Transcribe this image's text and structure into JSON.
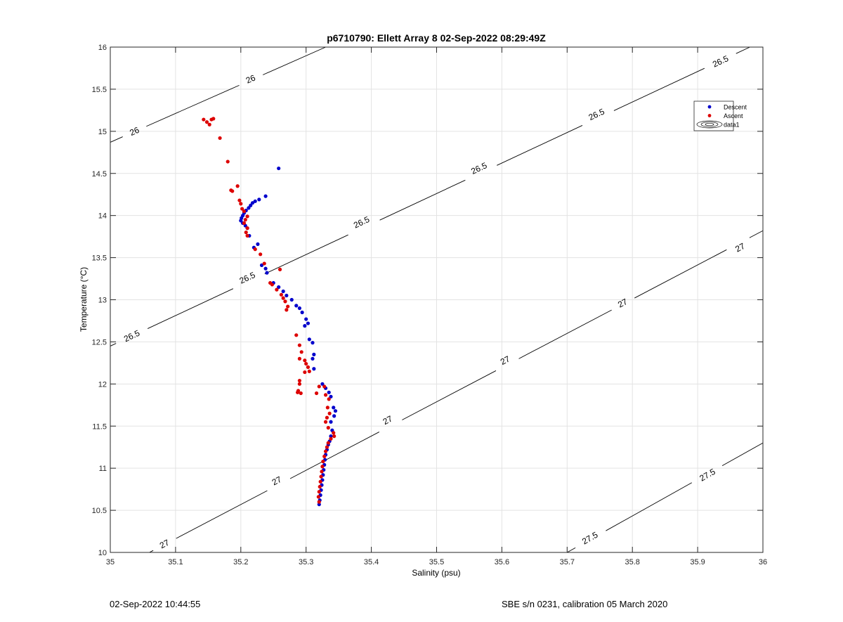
{
  "footer": {
    "timestamp": "02-Sep-2022 10:44:55",
    "instrument": "SBE s/n 0231, calibration 05 March 2020"
  },
  "chart_data": {
    "type": "scatter",
    "title": "p6710790: Ellett Array 8 02-Sep-2022 08:29:49Z",
    "xlabel": "Salinity (psu)",
    "ylabel": "Temperature (°C)",
    "xlim": [
      35,
      36
    ],
    "ylim": [
      10,
      16
    ],
    "xticks": [
      "35",
      "35.1",
      "35.2",
      "35.3",
      "35.4",
      "35.5",
      "35.6",
      "35.7",
      "35.8",
      "35.9",
      "36"
    ],
    "yticks": [
      "10",
      "10.5",
      "11",
      "11.5",
      "12",
      "12.5",
      "13",
      "13.5",
      "14",
      "14.5",
      "15",
      "15.5",
      "16"
    ],
    "grid": true,
    "legend": {
      "position": "top-right",
      "entries": [
        "Descent",
        "Ascent",
        "data1"
      ]
    },
    "colors": {
      "descent": "#0000cc",
      "ascent": "#dd0000",
      "contour": "#000000",
      "grid": "#e3e3e3"
    },
    "contours": [
      {
        "level": "26",
        "points": [
          [
            35.0,
            14.87
          ],
          [
            35.33,
            16.0
          ]
        ],
        "labels": [
          [
            35.037,
            15.0
          ],
          [
            35.215,
            15.62
          ]
        ]
      },
      {
        "level": "26.5",
        "points": [
          [
            35.0,
            12.45
          ],
          [
            35.98,
            16.0
          ]
        ],
        "labels": [
          [
            35.033,
            12.57
          ],
          [
            35.21,
            13.26
          ],
          [
            35.385,
            13.92
          ],
          [
            35.565,
            14.56
          ],
          [
            35.745,
            15.2
          ],
          [
            35.935,
            15.83
          ]
        ]
      },
      {
        "level": "27",
        "points": [
          [
            35.06,
            10.0
          ],
          [
            36.0,
            13.82
          ]
        ],
        "labels": [
          [
            35.083,
            10.1
          ],
          [
            35.255,
            10.85
          ],
          [
            35.425,
            11.57
          ],
          [
            35.605,
            12.28
          ],
          [
            35.785,
            12.96
          ],
          [
            35.965,
            13.62
          ]
        ]
      },
      {
        "level": "27.5",
        "points": [
          [
            35.7,
            10.0
          ],
          [
            36.0,
            11.3
          ]
        ],
        "labels": [
          [
            35.735,
            10.17
          ],
          [
            35.915,
            10.92
          ]
        ]
      }
    ],
    "series": [
      {
        "name": "Descent",
        "points": [
          [
            35.258,
            14.56
          ],
          [
            35.238,
            14.23
          ],
          [
            35.228,
            14.19
          ],
          [
            35.222,
            14.17
          ],
          [
            35.218,
            14.15
          ],
          [
            35.215,
            14.12
          ],
          [
            35.212,
            14.09
          ],
          [
            35.208,
            14.06
          ],
          [
            35.205,
            14.03
          ],
          [
            35.203,
            14.0
          ],
          [
            35.201,
            13.97
          ],
          [
            35.2,
            13.94
          ],
          [
            35.203,
            13.91
          ],
          [
            35.207,
            13.88
          ],
          [
            35.21,
            13.85
          ],
          [
            35.213,
            13.76
          ],
          [
            35.22,
            13.62
          ],
          [
            35.226,
            13.66
          ],
          [
            35.232,
            13.41
          ],
          [
            35.238,
            13.37
          ],
          [
            35.24,
            13.32
          ],
          [
            35.25,
            13.2
          ],
          [
            35.258,
            13.15
          ],
          [
            35.265,
            13.1
          ],
          [
            35.27,
            13.05
          ],
          [
            35.278,
            13.0
          ],
          [
            35.285,
            12.93
          ],
          [
            35.29,
            12.9
          ],
          [
            35.294,
            12.85
          ],
          [
            35.3,
            12.77
          ],
          [
            35.303,
            12.72
          ],
          [
            35.298,
            12.69
          ],
          [
            35.305,
            12.53
          ],
          [
            35.31,
            12.49
          ],
          [
            35.312,
            12.35
          ],
          [
            35.31,
            12.3
          ],
          [
            35.312,
            12.18
          ],
          [
            35.325,
            12.0
          ],
          [
            35.33,
            11.95
          ],
          [
            35.335,
            11.9
          ],
          [
            35.338,
            11.85
          ],
          [
            35.342,
            11.72
          ],
          [
            35.345,
            11.68
          ],
          [
            35.343,
            11.62
          ],
          [
            35.338,
            11.55
          ],
          [
            35.34,
            11.45
          ],
          [
            35.338,
            11.38
          ],
          [
            35.336,
            11.32
          ],
          [
            35.334,
            11.28
          ],
          [
            35.332,
            11.22
          ],
          [
            35.33,
            11.16
          ],
          [
            35.329,
            11.1
          ],
          [
            35.328,
            11.04
          ],
          [
            35.327,
            10.98
          ],
          [
            35.326,
            10.92
          ],
          [
            35.325,
            10.86
          ],
          [
            35.324,
            10.8
          ],
          [
            35.323,
            10.74
          ],
          [
            35.322,
            10.68
          ],
          [
            35.321,
            10.62
          ],
          [
            35.32,
            10.57
          ]
        ]
      },
      {
        "name": "Ascent",
        "points": [
          [
            35.143,
            15.14
          ],
          [
            35.148,
            15.11
          ],
          [
            35.152,
            15.08
          ],
          [
            35.155,
            15.14
          ],
          [
            35.158,
            15.15
          ],
          [
            35.168,
            14.92
          ],
          [
            35.18,
            14.64
          ],
          [
            35.195,
            14.35
          ],
          [
            35.187,
            14.29
          ],
          [
            35.185,
            14.3
          ],
          [
            35.198,
            14.18
          ],
          [
            35.2,
            14.14
          ],
          [
            35.205,
            14.05
          ],
          [
            35.202,
            14.08
          ],
          [
            35.21,
            13.99
          ],
          [
            35.207,
            13.95
          ],
          [
            35.205,
            13.91
          ],
          [
            35.21,
            13.85
          ],
          [
            35.208,
            13.8
          ],
          [
            35.21,
            13.76
          ],
          [
            35.222,
            13.6
          ],
          [
            35.23,
            13.54
          ],
          [
            35.236,
            13.43
          ],
          [
            35.245,
            13.2
          ],
          [
            35.248,
            13.18
          ],
          [
            35.255,
            13.12
          ],
          [
            35.26,
            13.36
          ],
          [
            35.262,
            13.06
          ],
          [
            35.265,
            13.02
          ],
          [
            35.268,
            12.98
          ],
          [
            35.27,
            12.88
          ],
          [
            35.272,
            12.92
          ],
          [
            35.285,
            12.58
          ],
          [
            35.29,
            12.46
          ],
          [
            35.293,
            12.38
          ],
          [
            35.29,
            12.3
          ],
          [
            35.298,
            12.28
          ],
          [
            35.3,
            12.24
          ],
          [
            35.303,
            12.2
          ],
          [
            35.305,
            12.15
          ],
          [
            35.298,
            12.14
          ],
          [
            35.29,
            12.04
          ],
          [
            35.29,
            12.0
          ],
          [
            35.288,
            11.92
          ],
          [
            35.292,
            11.89
          ],
          [
            35.287,
            11.9
          ],
          [
            35.316,
            11.89
          ],
          [
            35.32,
            11.97
          ],
          [
            35.328,
            11.97
          ],
          [
            35.33,
            11.87
          ],
          [
            35.335,
            11.82
          ],
          [
            35.333,
            11.72
          ],
          [
            35.336,
            11.65
          ],
          [
            35.332,
            11.6
          ],
          [
            35.33,
            11.55
          ],
          [
            35.334,
            11.48
          ],
          [
            35.342,
            11.42
          ],
          [
            35.343,
            11.38
          ],
          [
            35.338,
            11.35
          ],
          [
            35.334,
            11.3
          ],
          [
            35.332,
            11.25
          ],
          [
            35.33,
            11.2
          ],
          [
            35.328,
            11.14
          ],
          [
            35.326,
            11.08
          ],
          [
            35.325,
            11.02
          ],
          [
            35.324,
            10.96
          ],
          [
            35.323,
            10.9
          ],
          [
            35.322,
            10.84
          ],
          [
            35.321,
            10.78
          ],
          [
            35.32,
            10.72
          ],
          [
            35.319,
            10.66
          ],
          [
            35.32,
            10.6
          ]
        ]
      }
    ]
  }
}
